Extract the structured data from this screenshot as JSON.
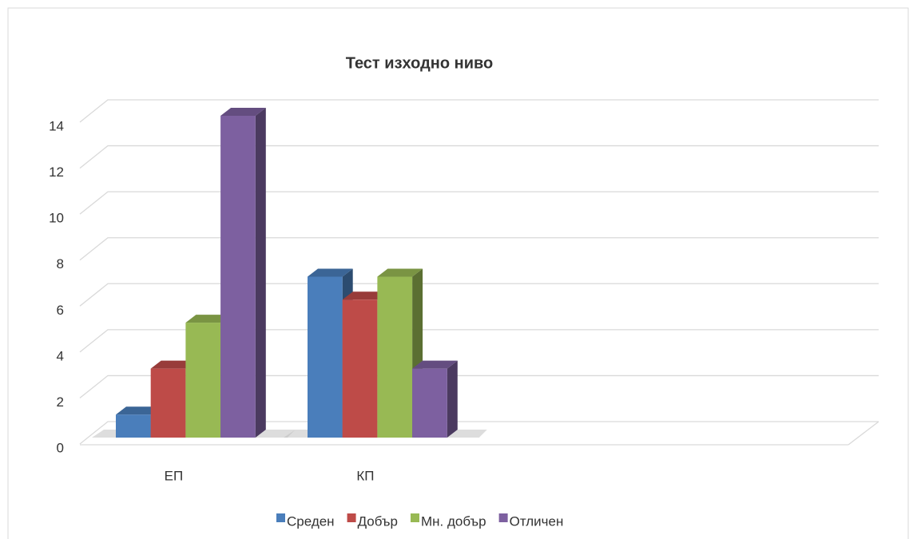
{
  "chart_data": {
    "type": "bar3d",
    "title": "Тест изходно ниво",
    "categories": [
      "ЕП",
      "КП"
    ],
    "series": [
      {
        "name": "Среден",
        "color": "#4a7ebb",
        "values": [
          1,
          7
        ]
      },
      {
        "name": "Добър",
        "color": "#be4b48",
        "values": [
          3,
          6
        ]
      },
      {
        "name": "Мн. добър",
        "color": "#98b954",
        "values": [
          5,
          7
        ]
      },
      {
        "name": "Отличен",
        "color": "#7d60a0",
        "values": [
          14,
          3
        ]
      }
    ],
    "ylim": [
      0,
      14
    ],
    "yticks": [
      0,
      2,
      4,
      6,
      8,
      10,
      12,
      14
    ],
    "grid": true,
    "legend": "bottom"
  }
}
